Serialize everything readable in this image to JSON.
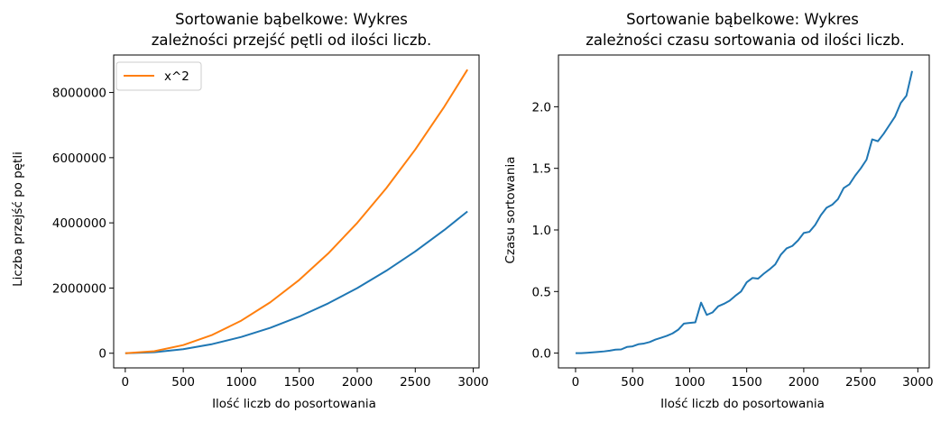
{
  "chart_data": [
    {
      "type": "line",
      "title_line1": "Sortowanie bąbelkowe: Wykres",
      "title_line2": "zależności przejść  pętli od ilości liczb.",
      "xlabel": "Ilość liczb do posortowania",
      "ylabel": "Liczba przejść po pętli",
      "xlim": [
        -100,
        3050
      ],
      "ylim": [
        -450000,
        9150000
      ],
      "xticks": [
        0,
        500,
        1000,
        1500,
        2000,
        2500,
        3000
      ],
      "xtick_labels": [
        "0",
        "500",
        "1000",
        "1500",
        "2000",
        "2500",
        "3000"
      ],
      "yticks": [
        0,
        2000000,
        4000000,
        6000000,
        8000000
      ],
      "ytick_labels": [
        "0",
        "2000000",
        "4000000",
        "6000000",
        "8000000"
      ],
      "legend": {
        "position": "upper-left",
        "entries": [
          "x^2"
        ]
      },
      "series": [
        {
          "color": "#1f77b4",
          "x": [
            0,
            250,
            500,
            750,
            1000,
            1250,
            1500,
            1750,
            2000,
            2250,
            2500,
            2750,
            2950
          ],
          "values": [
            0,
            31125,
            124750,
            280875,
            499500,
            780625,
            1124250,
            1530375,
            1999000,
            2530125,
            3123750,
            3779875,
            4349775
          ]
        },
        {
          "name": "x^2",
          "color": "#ff7f0e",
          "x": [
            0,
            250,
            500,
            750,
            1000,
            1250,
            1500,
            1750,
            2000,
            2250,
            2500,
            2750,
            2950
          ],
          "values": [
            0,
            62500,
            250000,
            562500,
            1000000,
            1562500,
            2250000,
            3062500,
            4000000,
            5062500,
            6250000,
            7562500,
            8702500
          ]
        }
      ]
    },
    {
      "type": "line",
      "title_line1": "Sortowanie bąbelkowe: Wykres",
      "title_line2": "zależności czasu sortowania od ilości liczb.",
      "xlabel": "Ilość liczb do posortowania",
      "ylabel": "Czasu sortowania",
      "xlim": [
        -150,
        3100
      ],
      "ylim": [
        -0.12,
        2.42
      ],
      "xticks": [
        0,
        500,
        1000,
        1500,
        2000,
        2500,
        3000
      ],
      "xtick_labels": [
        "0",
        "500",
        "1000",
        "1500",
        "2000",
        "2500",
        "3000"
      ],
      "yticks": [
        0.0,
        0.5,
        1.0,
        1.5,
        2.0
      ],
      "ytick_labels": [
        "0.0",
        "0.5",
        "1.0",
        "1.5",
        "2.0"
      ],
      "series": [
        {
          "color": "#1f77b4",
          "x": [
            0,
            50,
            100,
            150,
            200,
            250,
            300,
            350,
            400,
            450,
            500,
            550,
            600,
            650,
            700,
            750,
            800,
            850,
            900,
            950,
            1000,
            1050,
            1100,
            1150,
            1200,
            1250,
            1300,
            1350,
            1400,
            1450,
            1500,
            1550,
            1600,
            1650,
            1700,
            1750,
            1800,
            1850,
            1900,
            1950,
            2000,
            2050,
            2100,
            2150,
            2200,
            2250,
            2300,
            2350,
            2400,
            2450,
            2500,
            2550,
            2600,
            2650,
            2700,
            2750,
            2800,
            2850,
            2900,
            2950
          ],
          "values": [
            0.0,
            0.0,
            0.003,
            0.006,
            0.01,
            0.014,
            0.02,
            0.028,
            0.03,
            0.05,
            0.055,
            0.072,
            0.078,
            0.09,
            0.11,
            0.125,
            0.14,
            0.16,
            0.19,
            0.24,
            0.245,
            0.25,
            0.41,
            0.31,
            0.33,
            0.38,
            0.4,
            0.425,
            0.465,
            0.5,
            0.575,
            0.61,
            0.605,
            0.645,
            0.68,
            0.72,
            0.8,
            0.85,
            0.87,
            0.915,
            0.975,
            0.985,
            1.04,
            1.12,
            1.18,
            1.205,
            1.25,
            1.34,
            1.37,
            1.44,
            1.5,
            1.57,
            1.735,
            1.72,
            1.78,
            1.85,
            1.92,
            2.03,
            2.09,
            2.29
          ]
        }
      ]
    }
  ]
}
